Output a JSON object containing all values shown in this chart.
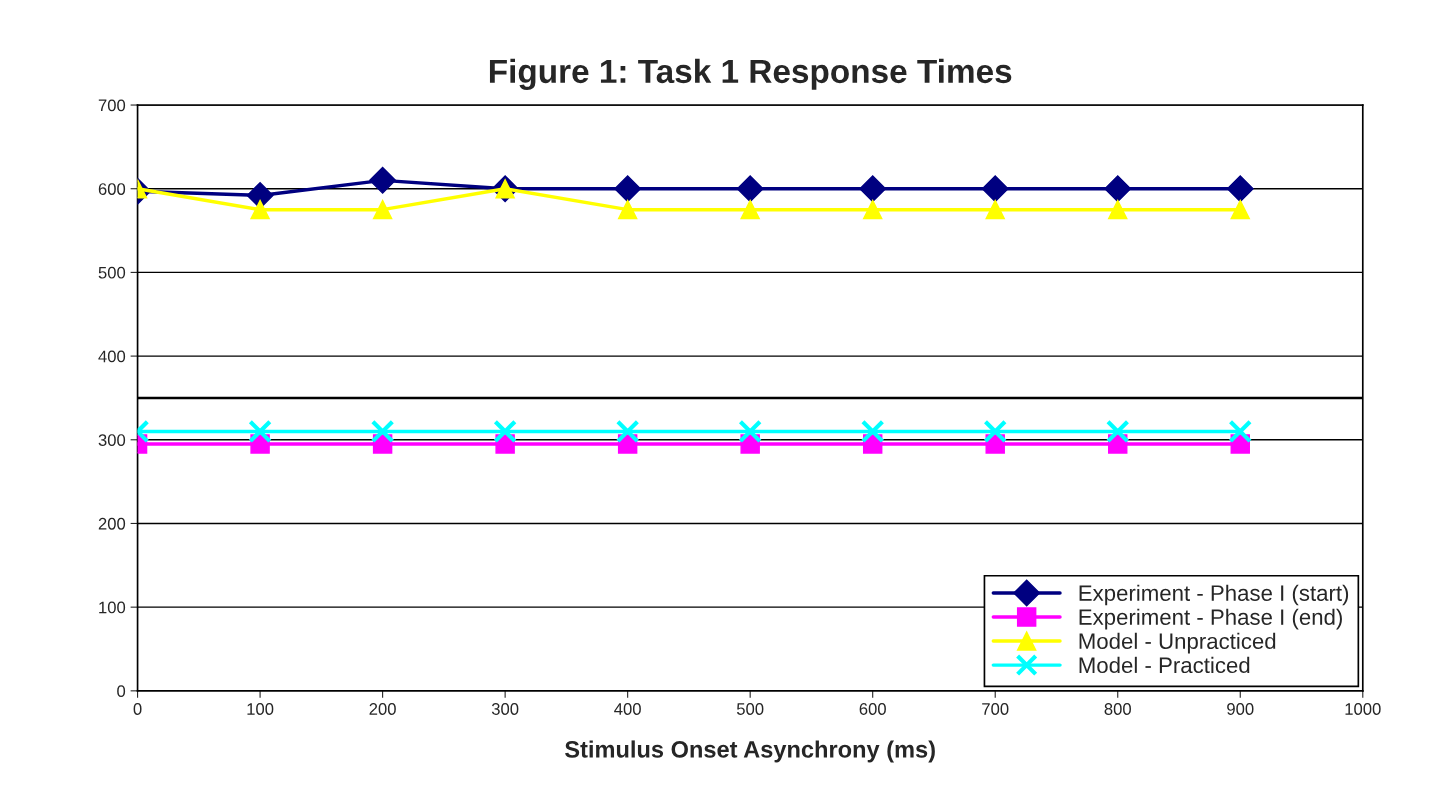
{
  "chart_data": {
    "type": "line",
    "title": "Figure 1: Task 1 Response Times",
    "xlabel": "Stimulus Onset Asynchrony (ms)",
    "x": [
      0,
      100,
      200,
      300,
      400,
      500,
      600,
      700,
      800,
      900
    ],
    "series": [
      {
        "name": "Experiment - Phase I (start)",
        "color": "#000080",
        "marker": "diamond",
        "values": [
          597,
          592,
          610,
          600,
          600,
          600,
          600,
          600,
          600,
          600
        ]
      },
      {
        "name": "Experiment - Phase I (end)",
        "color": "#ff00ff",
        "marker": "square",
        "values": [
          295,
          295,
          295,
          295,
          295,
          295,
          295,
          295,
          295,
          295
        ]
      },
      {
        "name": "Model - Unpracticed",
        "color": "#ffff00",
        "marker": "triangle",
        "values": [
          600,
          575,
          575,
          600,
          575,
          575,
          575,
          575,
          575,
          575
        ]
      },
      {
        "name": "Model - Practiced",
        "color": "#00ffff",
        "marker": "cross",
        "values": [
          310,
          310,
          310,
          310,
          310,
          310,
          310,
          310,
          310,
          310
        ]
      }
    ],
    "xlim": [
      0,
      1000
    ],
    "xticks": [
      0,
      100,
      200,
      300,
      400,
      500,
      600,
      700,
      800,
      900,
      1000
    ],
    "ylim": [
      0,
      700
    ],
    "yticks": [
      0,
      100,
      200,
      300,
      400,
      500,
      600,
      700
    ],
    "ref_lines": [
      {
        "axis": "y",
        "value": 350,
        "color": "#000000"
      }
    ],
    "grid": "y",
    "legend": "bottom right"
  }
}
